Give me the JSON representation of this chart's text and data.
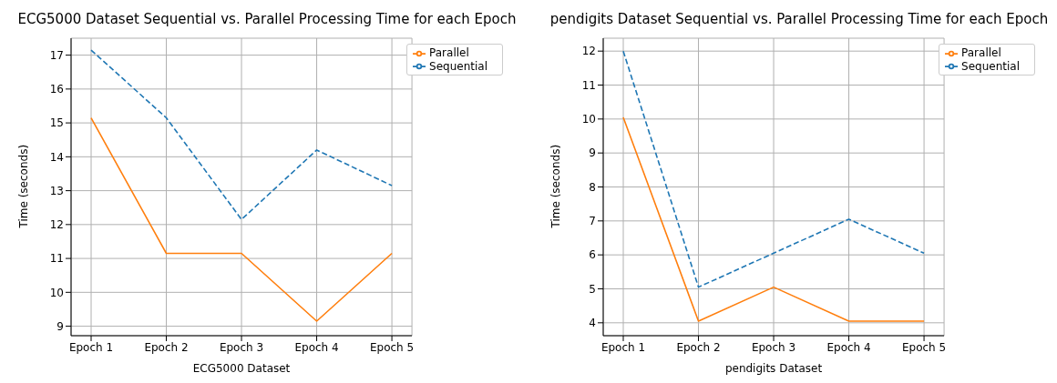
{
  "chart_data": [
    {
      "type": "line",
      "title": "ECG5000 Dataset Sequential vs. Parallel Processing Time for each Epoch",
      "xlabel": "ECG5000 Dataset",
      "ylabel": "Time (seconds)",
      "categories": [
        "Epoch 1",
        "Epoch 2",
        "Epoch 3",
        "Epoch 4",
        "Epoch 5"
      ],
      "series": [
        {
          "name": "Sequential",
          "color": "#1f77b4",
          "line_style": "dashed",
          "values": [
            17.15,
            15.15,
            12.15,
            14.2,
            13.15
          ]
        },
        {
          "name": "Parallel",
          "color": "#ff7f0e",
          "line_style": "solid",
          "values": [
            15.15,
            11.15,
            11.15,
            9.15,
            11.15
          ]
        }
      ],
      "ylim": [
        8.72,
        17.5
      ],
      "yticks": [
        9,
        10,
        11,
        12,
        13,
        14,
        15,
        16,
        17
      ],
      "grid": true,
      "legend": "top right"
    },
    {
      "type": "line",
      "title": "pendigits Dataset Sequential vs. Parallel Processing Time for each Epoch",
      "xlabel": "pendigits Dataset",
      "ylabel": "Time (seconds)",
      "categories": [
        "Epoch 1",
        "Epoch 2",
        "Epoch 3",
        "Epoch 4",
        "Epoch 5"
      ],
      "series": [
        {
          "name": "Sequential",
          "color": "#1f77b4",
          "line_style": "dashed",
          "values": [
            12.0,
            5.05,
            6.05,
            7.05,
            6.05
          ]
        },
        {
          "name": "Parallel",
          "color": "#ff7f0e",
          "line_style": "solid",
          "values": [
            10.05,
            4.05,
            5.05,
            4.05,
            4.05
          ]
        }
      ],
      "ylim": [
        3.62,
        12.38
      ],
      "yticks": [
        4,
        5,
        6,
        7,
        8,
        9,
        10,
        11,
        12
      ],
      "grid": true,
      "legend": "top right"
    }
  ]
}
